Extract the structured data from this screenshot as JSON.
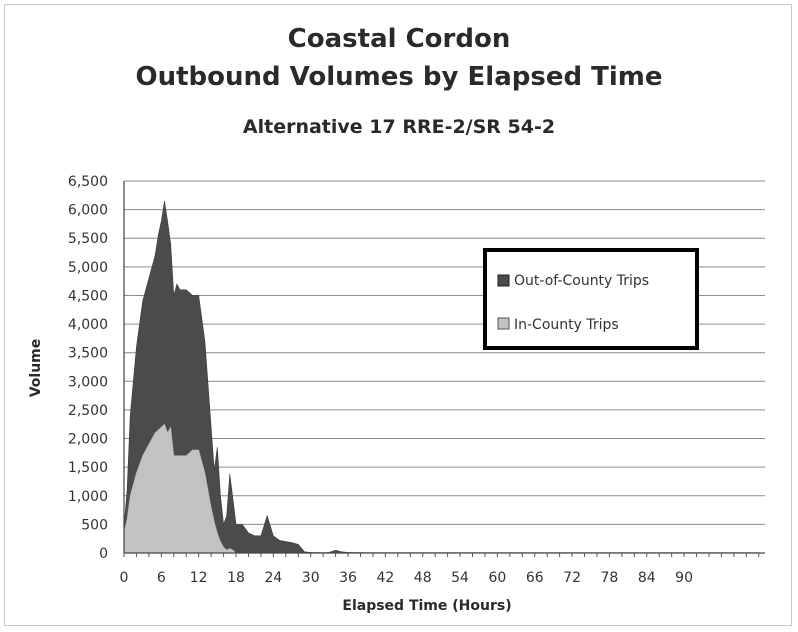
{
  "chart_data": {
    "type": "area",
    "title": "Coastal Cordon",
    "title_line2": "Outbound Volumes by Elapsed Time",
    "subtitle": "Alternative 17 RRE-2/SR 54-2",
    "xlabel": "Elapsed Time (Hours)",
    "ylabel": "Volume",
    "xlim": [
      0,
      103
    ],
    "ylim": [
      0,
      6500
    ],
    "x_ticks": [
      0,
      6,
      12,
      18,
      24,
      30,
      36,
      42,
      48,
      54,
      60,
      66,
      72,
      78,
      84,
      90
    ],
    "y_ticks": [
      0,
      500,
      1000,
      1500,
      2000,
      2500,
      3000,
      3500,
      4000,
      4500,
      5000,
      5500,
      6000,
      6500
    ],
    "y_tick_labels": [
      "0",
      "500",
      "1,000",
      "1,500",
      "2,000",
      "2,500",
      "3,000",
      "3,500",
      "4,000",
      "4,500",
      "5,000",
      "5,500",
      "6,000",
      "6,500"
    ],
    "grid": true,
    "stacked": true,
    "legend_position": "right",
    "colors": {
      "in_county": "#c2c2c2",
      "out_of_county": "#4b4b4b"
    },
    "series": [
      {
        "name": "Out-of-County Trips",
        "x": [
          0,
          0.5,
          1,
          2,
          3,
          4,
          5,
          5.5,
          6,
          6.5,
          7,
          7.5,
          8,
          8.5,
          9,
          10,
          11,
          12,
          13,
          14,
          14.5,
          15,
          15.5,
          16,
          16.5,
          17,
          17.5,
          18,
          19,
          20,
          21,
          22,
          23,
          24,
          25,
          26,
          27,
          28,
          29,
          30,
          32,
          33,
          34,
          35,
          36,
          40,
          50,
          60,
          70,
          80,
          90,
          102
        ],
        "values": [
          100,
          500,
          1400,
          2200,
          2700,
          2900,
          3100,
          3400,
          3600,
          3900,
          3700,
          3200,
          2800,
          3000,
          2900,
          2900,
          2700,
          2700,
          2300,
          1400,
          900,
          1500,
          800,
          400,
          600,
          1300,
          900,
          500,
          500,
          350,
          300,
          300,
          650,
          300,
          220,
          200,
          180,
          150,
          20,
          10,
          5,
          10,
          50,
          20,
          10,
          5,
          5,
          5,
          5,
          5,
          5,
          5
        ]
      },
      {
        "name": "In-County Trips",
        "x": [
          0,
          0.5,
          1,
          2,
          3,
          4,
          5,
          5.5,
          6,
          6.5,
          7,
          7.5,
          8,
          8.5,
          9,
          10,
          11,
          12,
          13,
          14,
          14.5,
          15,
          15.5,
          16,
          16.5,
          17,
          17.5,
          18,
          19,
          20,
          21,
          22,
          23,
          24,
          25,
          26,
          27,
          28,
          29,
          30,
          32,
          33,
          34,
          35,
          36,
          40,
          50,
          60,
          70,
          80,
          90,
          102
        ],
        "values": [
          350,
          600,
          1000,
          1400,
          1700,
          1900,
          2100,
          2150,
          2200,
          2250,
          2100,
          2200,
          1700,
          1700,
          1700,
          1700,
          1800,
          1800,
          1400,
          800,
          550,
          350,
          200,
          100,
          50,
          80,
          50,
          0,
          0,
          0,
          0,
          0,
          0,
          0,
          0,
          0,
          0,
          0,
          0,
          0,
          0,
          0,
          0,
          0,
          0,
          0,
          0,
          0,
          0,
          0,
          0,
          0
        ]
      }
    ]
  }
}
